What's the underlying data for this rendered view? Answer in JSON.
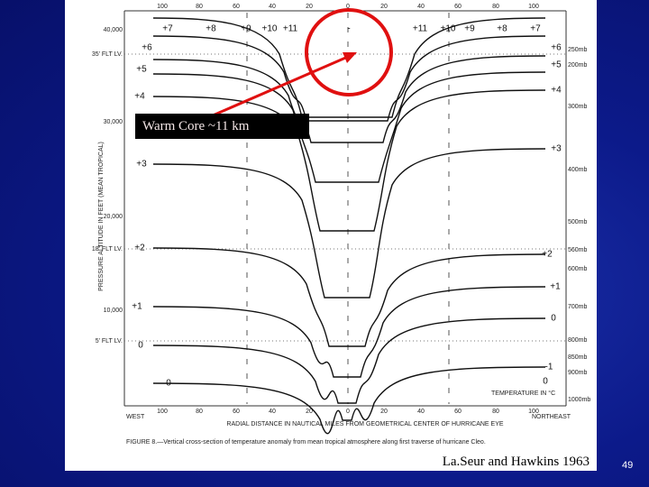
{
  "slide": {
    "annotation": "Warm Core ~11 km",
    "citation": "La.Seur and Hawkins 1963",
    "page_number": "49",
    "figure": {
      "x_ticks_top": [
        "100",
        "80",
        "60",
        "40",
        "20",
        "0",
        "20",
        "40",
        "60",
        "80",
        "100"
      ],
      "x_ticks_bottom": [
        "100",
        "80",
        "60",
        "40",
        "20",
        "0",
        "20",
        "40",
        "60",
        "80",
        "100"
      ],
      "y_ticks": [
        "40,000",
        "30,000",
        "20,000",
        "10,000"
      ],
      "flight_levels": [
        "35' FLT LV.",
        "18' FLT LV.",
        "5' FLT LV."
      ],
      "y_axis_label": "PRESSURE ALTITUDE IN FEET (MEAN TROPICAL)",
      "pressure_labels": [
        "250mb",
        "200mb",
        "300mb",
        "400mb",
        "500mb",
        "560mb",
        "600mb",
        "700mb",
        "800mb",
        "850mb",
        "900mb",
        "1000mb"
      ],
      "contour_labels": [
        "+7",
        "+8",
        "+9",
        "+10",
        "+11",
        "+6",
        "+5",
        "+4",
        "+3",
        "+2",
        "+1",
        "0",
        "0",
        "-",
        "+11",
        "+10",
        "+9",
        "+8",
        "+7",
        "+6",
        "+5",
        "+4",
        "+3",
        "+2",
        "+1",
        "0",
        "-1",
        "0"
      ],
      "x_axis_label": "RADIAL DISTANCE IN NAUTICAL MILES FROM GEOMETRICAL CENTER OF HURRICANE EYE",
      "west": "WEST",
      "northeast": "NORTHEAST",
      "legend": "TEMPERATURE IN °C",
      "caption": "FIGURE 8.—Vertical cross-section of temperature anomaly from mean tropical atmosphere along first traverse of hurricane Cleo."
    }
  }
}
